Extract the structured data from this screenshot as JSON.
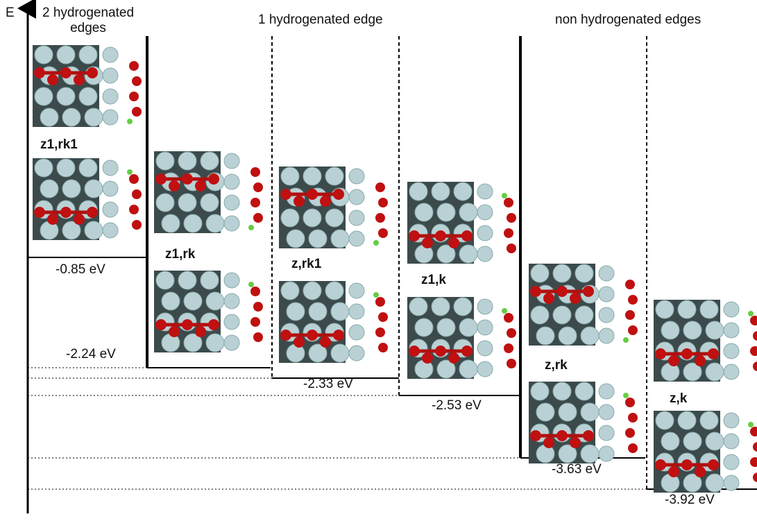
{
  "axis_label": "E",
  "groups": [
    "2 hydrogenated edges",
    "1 hydrogenated edge",
    "non hydrogenated edges"
  ],
  "levels": [
    {
      "name": "z1,rk1",
      "energy": "-0.85 eV"
    },
    {
      "name": "z1,rk",
      "energy": "-2.24 eV"
    },
    {
      "name": "z,rk1",
      "energy": "-2.33 eV"
    },
    {
      "name": "z1,k",
      "energy": "-2.53 eV"
    },
    {
      "name": "z,rk",
      "energy": "-3.63 eV"
    },
    {
      "name": "z,k",
      "energy": "-3.92 eV"
    }
  ]
}
